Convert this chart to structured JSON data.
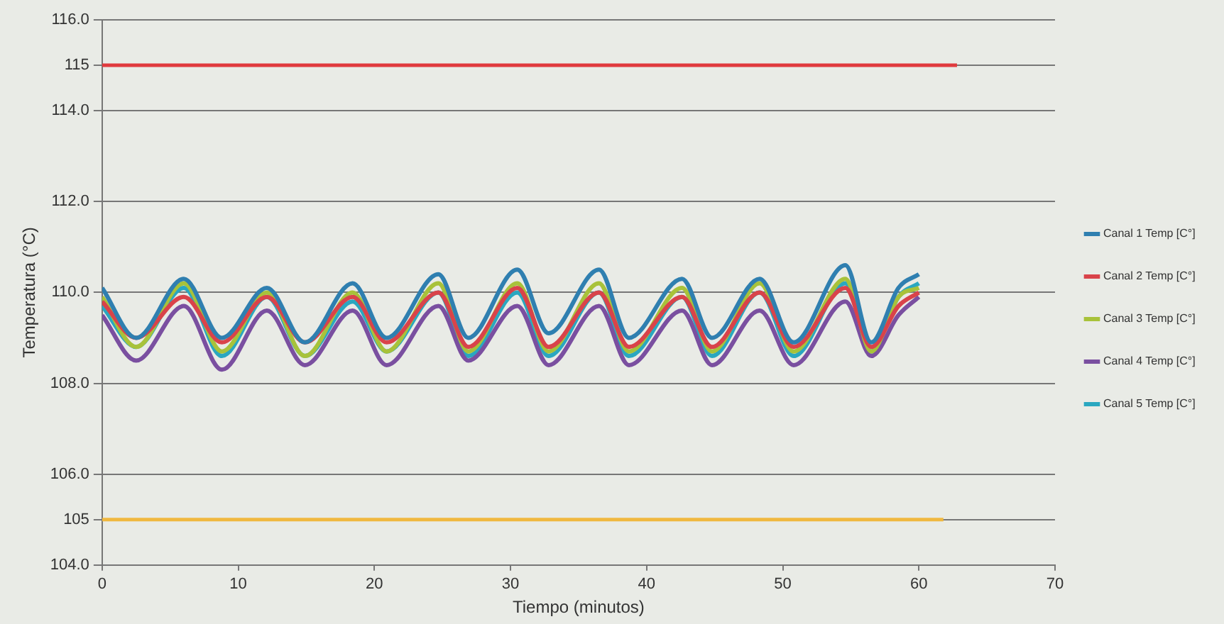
{
  "chart_data": {
    "type": "line",
    "xlabel": "Tiempo (minutos)",
    "ylabel": "Temperatura (°C)",
    "xlim": [
      0,
      70
    ],
    "xticks": [
      0,
      10,
      20,
      30,
      40,
      50,
      60,
      70
    ],
    "ylim": [
      104,
      116
    ],
    "yticks": [
      {
        "value": 104,
        "label": "104.0"
      },
      105,
      {
        "value": 106,
        "label": "106.0"
      },
      {
        "value": 108,
        "label": "108.0"
      },
      {
        "value": 110,
        "label": "110.0"
      },
      {
        "value": 112,
        "label": "112.0"
      },
      {
        "value": 114,
        "label": "114.0"
      },
      115,
      {
        "value": 116,
        "label": "116.0"
      }
    ],
    "grid": "y",
    "legend": "right",
    "marker": "none",
    "line_style": "solid",
    "x": [
      0,
      2.5,
      6,
      8.8,
      12.1,
      14.9,
      18.4,
      20.9,
      24.7,
      26.9,
      30.5,
      32.8,
      36.5,
      38.7,
      42.6,
      44.8,
      48.3,
      50.8,
      54.6,
      56.5,
      58.5,
      60
    ],
    "series": [
      {
        "x": [
          0,
          62.8
        ],
        "color": "#e03a3e",
        "values": [
          115,
          115
        ]
      },
      {
        "x": [
          0,
          61.8
        ],
        "color": "#f0b840",
        "values": [
          105,
          105
        ]
      },
      {
        "name": "Canal 1 Temp [C°]",
        "color": "#2f7fb0",
        "values": [
          110.1,
          109.0,
          110.3,
          109.0,
          110.1,
          108.9,
          110.2,
          109.0,
          110.4,
          109.0,
          110.5,
          109.1,
          110.5,
          109.0,
          110.3,
          109.0,
          110.3,
          108.9,
          110.6,
          108.9,
          110.1,
          110.4
        ]
      },
      {
        "name": "Canal 2 Temp [C°]",
        "color": "#d9434a",
        "values": [
          109.8,
          109.0,
          109.9,
          108.9,
          109.9,
          108.9,
          109.9,
          108.9,
          110.0,
          108.8,
          110.1,
          108.8,
          110.0,
          108.8,
          109.9,
          108.8,
          110.0,
          108.8,
          110.1,
          108.8,
          109.7,
          110.0
        ]
      },
      {
        "name": "Canal 3 Temp [C°]",
        "color": "#a8c23a",
        "values": [
          109.9,
          108.8,
          110.2,
          108.7,
          110.0,
          108.6,
          110.0,
          108.7,
          110.2,
          108.7,
          110.2,
          108.7,
          110.2,
          108.7,
          110.1,
          108.7,
          110.2,
          108.7,
          110.3,
          108.7,
          109.9,
          110.1
        ]
      },
      {
        "name": "Canal 4 Temp [C°]",
        "color": "#7a4fa0",
        "values": [
          109.5,
          108.5,
          109.7,
          108.3,
          109.6,
          108.4,
          109.6,
          108.4,
          109.7,
          108.5,
          109.7,
          108.4,
          109.7,
          108.4,
          109.6,
          108.4,
          109.6,
          108.4,
          109.8,
          108.6,
          109.5,
          109.9
        ]
      },
      {
        "name": "Canal 5 Temp [C°]",
        "color": "#2aa7c0",
        "values": [
          109.7,
          108.8,
          110.1,
          108.6,
          109.9,
          108.6,
          109.8,
          108.7,
          110.0,
          108.6,
          110.0,
          108.6,
          110.0,
          108.6,
          109.9,
          108.6,
          110.0,
          108.6,
          110.2,
          108.7,
          109.9,
          110.2
        ]
      }
    ]
  }
}
